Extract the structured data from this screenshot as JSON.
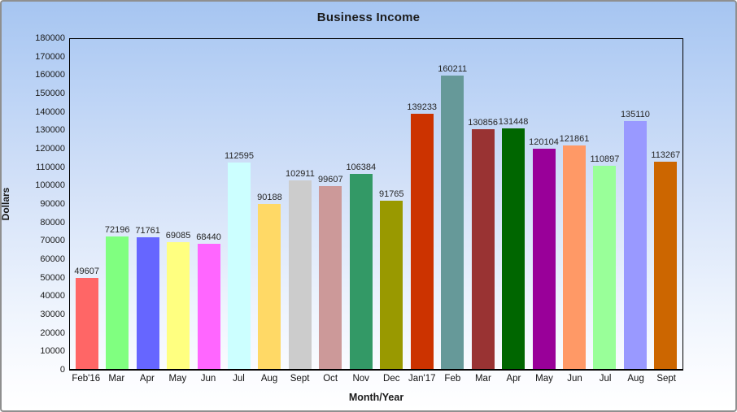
{
  "title": "Business Income",
  "chart_data": {
    "type": "bar",
    "title": "Business Income",
    "xlabel": "Month/Year",
    "ylabel": "Dollars",
    "ylim": [
      0,
      180000
    ],
    "y_tick_step": 10000,
    "grid": false,
    "legend": "none",
    "value_labels_shown": true,
    "categories": [
      "Feb'16",
      "Mar",
      "Apr",
      "May",
      "Jun",
      "Jul",
      "Aug",
      "Sept",
      "Oct",
      "Nov",
      "Dec",
      "Jan'17",
      "Feb",
      "Mar",
      "Apr",
      "May",
      "Jun",
      "Jul",
      "Aug",
      "Sept"
    ],
    "values": [
      49607,
      72196,
      71761,
      69085,
      68440,
      112595,
      90188,
      102911,
      99607,
      106384,
      91765,
      139233,
      160211,
      130856,
      131448,
      120104,
      121861,
      110897,
      135110,
      113267
    ],
    "bar_colors": [
      "#FF6666",
      "#80FF80",
      "#6666FF",
      "#FFFF80",
      "#FF66FF",
      "#CCFFFF",
      "#FFD966",
      "#CCCCCC",
      "#CC9999",
      "#339966",
      "#999900",
      "#CC3300",
      "#669999",
      "#993333",
      "#006600",
      "#990099",
      "#FF9966",
      "#99FF99",
      "#9999FF",
      "#CC6600"
    ]
  },
  "colors": {
    "background_top": "#a6c5f1",
    "background_bottom": "#ffffff",
    "plot_border": "#000000",
    "window_border": "#8f8f8f",
    "title_text": "#1c1c1c",
    "tick_text": "#1a1a1a",
    "value_label_text": "#262626"
  }
}
